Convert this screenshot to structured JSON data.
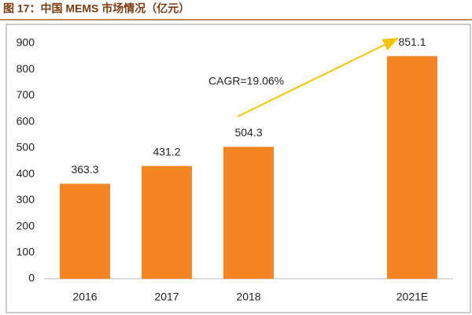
{
  "chart_data": {
    "type": "bar",
    "title": "图 17：中国 MEMS 市场情况（亿元）",
    "categories": [
      "2016",
      "2017",
      "2018",
      null,
      "2021E"
    ],
    "values": [
      363.3,
      431.2,
      504.3,
      null,
      851.1
    ],
    "color": "#f28522",
    "ylim": [
      0,
      900
    ],
    "yticks": [
      0,
      100,
      200,
      300,
      400,
      500,
      600,
      700,
      800,
      900
    ],
    "grid": false,
    "annotation": "CAGR=19.06%"
  }
}
